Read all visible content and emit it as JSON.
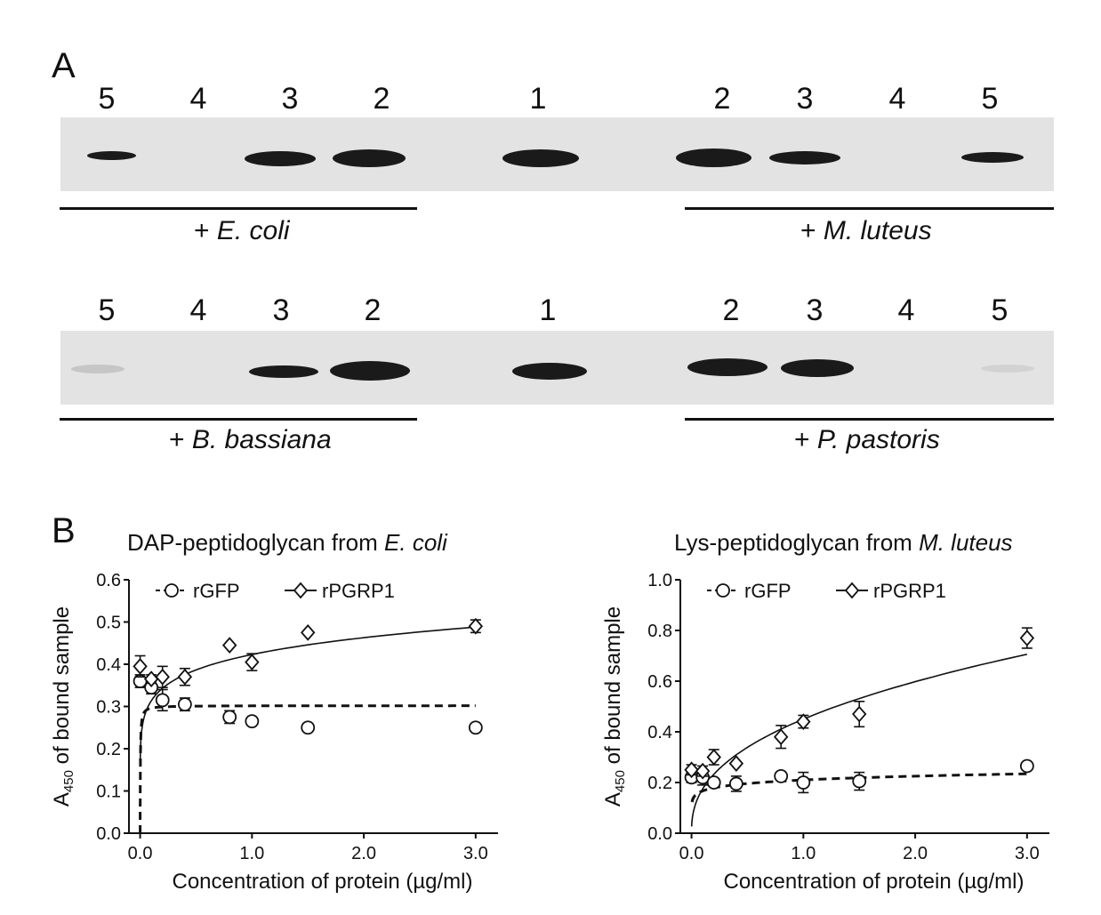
{
  "panel_a": {
    "label": "A",
    "row1": {
      "lanes": [
        "5",
        "4",
        "3",
        "2",
        "1",
        "2",
        "3",
        "4",
        "5"
      ],
      "left_prefix": "+ ",
      "left_organism": "E. coli",
      "right_prefix": "+ ",
      "right_organism": "M. luteus",
      "band_intensity": [
        0.08,
        0,
        0.9,
        0.95,
        0.9,
        1.0,
        0.85,
        0,
        0.8
      ]
    },
    "row2": {
      "lanes": [
        "5",
        "4",
        "3",
        "2",
        "1",
        "2",
        "3",
        "4",
        "5"
      ],
      "left_prefix": "+ ",
      "left_organism": "B. bassiana",
      "right_prefix": "+ ",
      "right_organism": "P. pastoris",
      "band_intensity": [
        0.12,
        0,
        0.8,
        0.9,
        0.8,
        0.85,
        0.85,
        0,
        0.08
      ]
    }
  },
  "panel_b": {
    "label": "B"
  },
  "chart_data": [
    {
      "type": "scatter",
      "title_prefix": "DAP-peptidoglycan from ",
      "title_italic": "E. coli",
      "xlabel": "Concentration of protein (µg/ml)",
      "ylabel_prefix": "A",
      "ylabel_sub": "450",
      "ylabel_suffix": " of bound sample",
      "xlim": [
        -0.1,
        3.2
      ],
      "ylim": [
        0,
        0.6
      ],
      "xticks": [
        0.0,
        1.0,
        2.0,
        3.0
      ],
      "xtick_labels": [
        "0.0",
        "1.0",
        "2.0",
        "3.0"
      ],
      "yticks": [
        0.0,
        0.1,
        0.2,
        0.3,
        0.4,
        0.5,
        0.6
      ],
      "ytick_labels": [
        "0.0",
        "0.1",
        "0.2",
        "0.3",
        "0.4",
        "0.5",
        "0.6"
      ],
      "legend": "top-left",
      "series": [
        {
          "name": "rGFP",
          "marker": "circle",
          "line": "dashed",
          "x": [
            0.0,
            0.1,
            0.2,
            0.4,
            0.8,
            1.0,
            1.5,
            3.0
          ],
          "y": [
            0.36,
            0.345,
            0.315,
            0.305,
            0.275,
            0.265,
            0.25,
            0.25
          ],
          "err": [
            0.015,
            0.015,
            0.025,
            0.015,
            0.015,
            0,
            0,
            0
          ],
          "fit": {
            "kind": "saturation",
            "bmax": 0.302,
            "kd": 0.002
          }
        },
        {
          "name": "rPGRP1",
          "marker": "diamond",
          "line": "solid",
          "x": [
            0.0,
            0.1,
            0.2,
            0.4,
            0.8,
            1.0,
            1.5,
            3.0
          ],
          "y": [
            0.395,
            0.365,
            0.37,
            0.37,
            0.445,
            0.405,
            0.475,
            0.49
          ],
          "err": [
            0.025,
            0.01,
            0.025,
            0.02,
            0,
            0.02,
            0,
            0.015
          ],
          "fit": {
            "kind": "power",
            "a": 0.423,
            "b": 0.13
          }
        }
      ]
    },
    {
      "type": "scatter",
      "title_prefix": "Lys-peptidoglycan from ",
      "title_italic": "M. luteus",
      "xlabel": "Concentration of protein (µg/ml)",
      "ylabel_prefix": "A",
      "ylabel_sub": "450",
      "ylabel_suffix": " of bound sample",
      "xlim": [
        -0.1,
        3.2
      ],
      "ylim": [
        0,
        1.0
      ],
      "xticks": [
        0.0,
        1.0,
        2.0,
        3.0
      ],
      "xtick_labels": [
        "0.0",
        "1.0",
        "2.0",
        "3.0"
      ],
      "yticks": [
        0.0,
        0.2,
        0.4,
        0.6,
        0.8,
        1.0
      ],
      "ytick_labels": [
        "0.0",
        "0.2",
        "0.4",
        "0.6",
        "0.8",
        "1.0"
      ],
      "legend": "top-left",
      "series": [
        {
          "name": "rGFP",
          "marker": "circle",
          "line": "dashed",
          "x": [
            0.0,
            0.1,
            0.2,
            0.4,
            0.8,
            1.0,
            1.5,
            3.0
          ],
          "y": [
            0.22,
            0.22,
            0.2,
            0.195,
            0.225,
            0.2,
            0.205,
            0.265
          ],
          "err": [
            0.02,
            0.03,
            0,
            0.03,
            0,
            0.04,
            0.035,
            0
          ],
          "fit": {
            "kind": "power",
            "a": 0.21,
            "b": 0.1,
            "xmin": 0.005
          }
        },
        {
          "name": "rPGRP1",
          "marker": "diamond",
          "line": "solid",
          "x": [
            0.0,
            0.1,
            0.2,
            0.4,
            0.8,
            1.0,
            1.5,
            3.0
          ],
          "y": [
            0.25,
            0.245,
            0.3,
            0.275,
            0.38,
            0.44,
            0.47,
            0.77
          ],
          "err": [
            0.02,
            0.02,
            0.03,
            0,
            0.045,
            0.025,
            0.05,
            0.04
          ],
          "fit": {
            "kind": "power",
            "a": 0.45,
            "b": 0.41,
            "xmin": 0.001
          }
        }
      ]
    }
  ]
}
